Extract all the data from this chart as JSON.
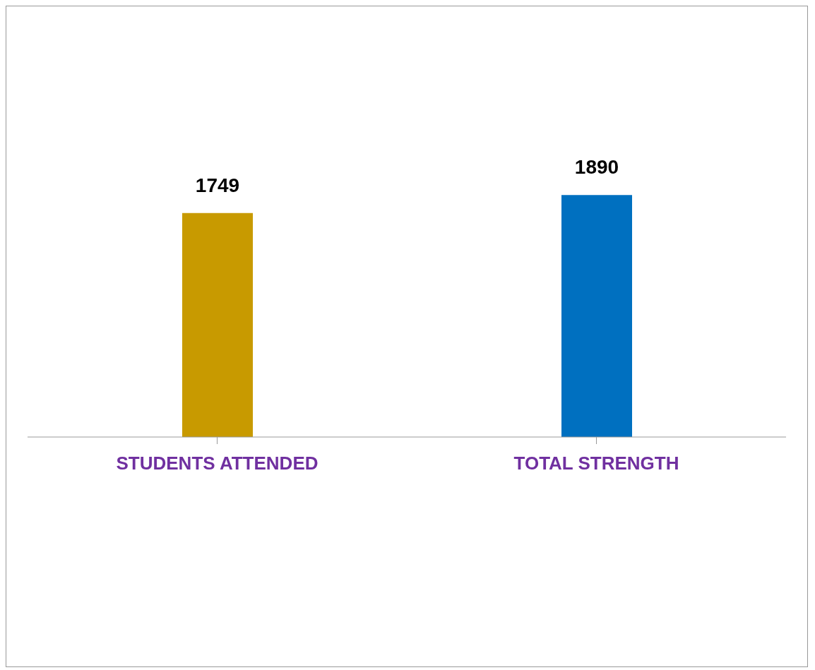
{
  "chart_data": {
    "type": "bar",
    "categories": [
      "STUDENTS ATTENDED",
      "TOTAL STRENGTH"
    ],
    "values": [
      1749,
      1890
    ],
    "colors": [
      "#c89a00",
      "#0070c0"
    ],
    "data_labels": true
  }
}
